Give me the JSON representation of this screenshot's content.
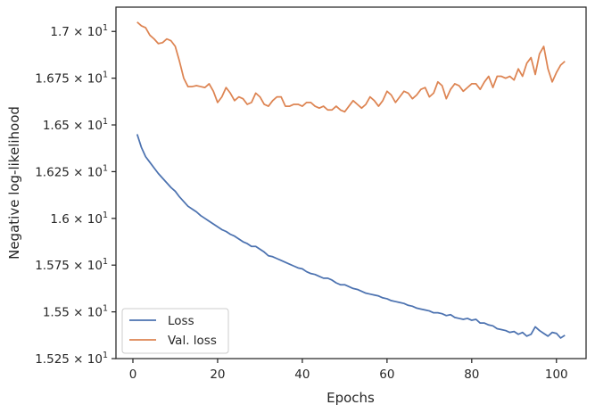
{
  "chart_data": {
    "type": "line",
    "title": "",
    "xlabel": "Epochs",
    "ylabel": "Negative log-likelihood",
    "xlim": [
      -4,
      107
    ],
    "ylim": [
      15.25,
      17.13
    ],
    "x_ticks": [
      {
        "value": 0,
        "label": "0"
      },
      {
        "value": 20,
        "label": "20"
      },
      {
        "value": 40,
        "label": "40"
      },
      {
        "value": 60,
        "label": "60"
      },
      {
        "value": 80,
        "label": "80"
      },
      {
        "value": 100,
        "label": "100"
      }
    ],
    "y_ticks": [
      {
        "value": 15.25,
        "mantissa": "1.525",
        "base": "10",
        "exp": "1"
      },
      {
        "value": 15.5,
        "mantissa": "1.55",
        "base": "10",
        "exp": "1"
      },
      {
        "value": 15.75,
        "mantissa": "1.575",
        "base": "10",
        "exp": "1"
      },
      {
        "value": 16.0,
        "mantissa": "1.6",
        "base": "10",
        "exp": "1"
      },
      {
        "value": 16.25,
        "mantissa": "1.625",
        "base": "10",
        "exp": "1"
      },
      {
        "value": 16.5,
        "mantissa": "1.65",
        "base": "10",
        "exp": "1"
      },
      {
        "value": 16.75,
        "mantissa": "1.675",
        "base": "10",
        "exp": "1"
      },
      {
        "value": 17.0,
        "mantissa": "1.7",
        "base": "10",
        "exp": "1"
      }
    ],
    "grid": false,
    "legend_position": "lower-left",
    "series": [
      {
        "name": "Loss",
        "color": "#4c72b0",
        "x": [
          1,
          2,
          3,
          4,
          5,
          6,
          7,
          8,
          9,
          10,
          11,
          12,
          13,
          14,
          15,
          16,
          17,
          18,
          19,
          20,
          21,
          22,
          23,
          24,
          25,
          26,
          27,
          28,
          29,
          30,
          31,
          32,
          33,
          34,
          35,
          36,
          37,
          38,
          39,
          40,
          41,
          42,
          43,
          44,
          45,
          46,
          47,
          48,
          49,
          50,
          51,
          52,
          53,
          54,
          55,
          56,
          57,
          58,
          59,
          60,
          61,
          62,
          63,
          64,
          65,
          66,
          67,
          68,
          69,
          70,
          71,
          72,
          73,
          74,
          75,
          76,
          77,
          78,
          79,
          80,
          81,
          82,
          83,
          84,
          85,
          86,
          87,
          88,
          89,
          90,
          91,
          92,
          93,
          94,
          95,
          96,
          97,
          98,
          99,
          100,
          101,
          102
        ],
        "values": [
          16.45,
          16.38,
          16.33,
          16.3,
          16.27,
          16.24,
          16.215,
          16.19,
          16.165,
          16.145,
          16.115,
          16.09,
          16.065,
          16.05,
          16.035,
          16.015,
          16.0,
          15.985,
          15.97,
          15.955,
          15.94,
          15.93,
          15.915,
          15.905,
          15.89,
          15.875,
          15.865,
          15.85,
          15.85,
          15.835,
          15.82,
          15.8,
          15.795,
          15.785,
          15.775,
          15.765,
          15.755,
          15.745,
          15.735,
          15.73,
          15.715,
          15.705,
          15.7,
          15.69,
          15.68,
          15.68,
          15.67,
          15.655,
          15.645,
          15.645,
          15.635,
          15.625,
          15.62,
          15.61,
          15.6,
          15.595,
          15.59,
          15.585,
          15.575,
          15.57,
          15.56,
          15.555,
          15.55,
          15.545,
          15.535,
          15.53,
          15.52,
          15.515,
          15.51,
          15.505,
          15.495,
          15.495,
          15.49,
          15.48,
          15.485,
          15.47,
          15.465,
          15.46,
          15.465,
          15.455,
          15.46,
          15.44,
          15.44,
          15.43,
          15.425,
          15.41,
          15.405,
          15.4,
          15.39,
          15.395,
          15.38,
          15.39,
          15.37,
          15.38,
          15.42,
          15.4,
          15.385,
          15.37,
          15.39,
          15.385,
          15.36,
          15.375
        ],
        "values_note": "approximate; trailing points read from plot"
      },
      {
        "name": "Val. loss",
        "color": "#dd8452",
        "x": [
          1,
          2,
          3,
          4,
          5,
          6,
          7,
          8,
          9,
          10,
          11,
          12,
          13,
          14,
          15,
          16,
          17,
          18,
          19,
          20,
          21,
          22,
          23,
          24,
          25,
          26,
          27,
          28,
          29,
          30,
          31,
          32,
          33,
          34,
          35,
          36,
          37,
          38,
          39,
          40,
          41,
          42,
          43,
          44,
          45,
          46,
          47,
          48,
          49,
          50,
          51,
          52,
          53,
          54,
          55,
          56,
          57,
          58,
          59,
          60,
          61,
          62,
          63,
          64,
          65,
          66,
          67,
          68,
          69,
          70,
          71,
          72,
          73,
          74,
          75,
          76,
          77,
          78,
          79,
          80,
          81,
          82,
          83,
          84,
          85,
          86,
          87,
          88,
          89,
          90,
          91,
          92,
          93,
          94,
          95,
          96,
          97,
          98,
          99,
          100,
          101,
          102
        ],
        "values": [
          17.05,
          17.03,
          17.02,
          16.98,
          16.96,
          16.935,
          16.94,
          16.96,
          16.95,
          16.92,
          16.84,
          16.75,
          16.705,
          16.705,
          16.71,
          16.705,
          16.7,
          16.72,
          16.68,
          16.62,
          16.65,
          16.7,
          16.67,
          16.63,
          16.65,
          16.64,
          16.61,
          16.62,
          16.67,
          16.65,
          16.61,
          16.6,
          16.63,
          16.65,
          16.65,
          16.6,
          16.6,
          16.61,
          16.61,
          16.6,
          16.62,
          16.62,
          16.6,
          16.59,
          16.6,
          16.58,
          16.58,
          16.6,
          16.58,
          16.57,
          16.6,
          16.63,
          16.61,
          16.59,
          16.61,
          16.65,
          16.63,
          16.6,
          16.63,
          16.68,
          16.66,
          16.62,
          16.65,
          16.68,
          16.67,
          16.64,
          16.66,
          16.69,
          16.7,
          16.65,
          16.67,
          16.73,
          16.71,
          16.64,
          16.69,
          16.72,
          16.71,
          16.68,
          16.7,
          16.72,
          16.72,
          16.69,
          16.73,
          16.76,
          16.7,
          16.76,
          16.76,
          16.75,
          16.76,
          16.74,
          16.8,
          16.76,
          16.83,
          16.86,
          16.77,
          16.88,
          16.92,
          16.8,
          16.73,
          16.78,
          16.82,
          16.84
        ]
      }
    ]
  }
}
